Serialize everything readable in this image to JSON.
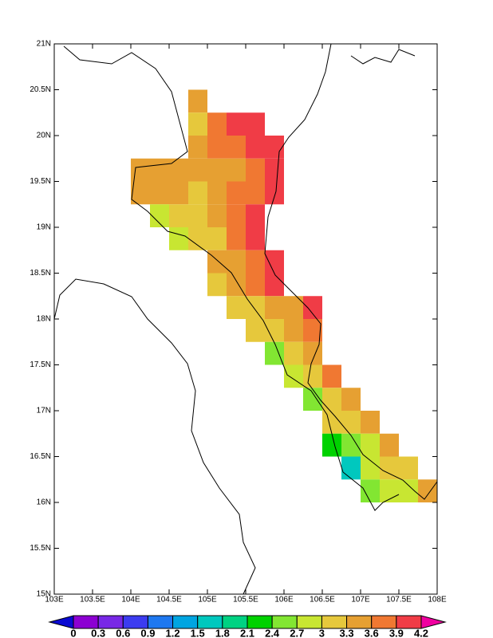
{
  "chart_data": {
    "type": "grid-map",
    "xlim": [
      103,
      108
    ],
    "ylim": [
      15,
      21
    ],
    "xticks": [
      {
        "value": 103,
        "label": "103E"
      },
      {
        "value": 103.5,
        "label": "103.5E"
      },
      {
        "value": 104,
        "label": "104E"
      },
      {
        "value": 104.5,
        "label": "104.5E"
      },
      {
        "value": 105,
        "label": "105E"
      },
      {
        "value": 105.5,
        "label": "105.5E"
      },
      {
        "value": 106,
        "label": "106E"
      },
      {
        "value": 106.5,
        "label": "106.5E"
      },
      {
        "value": 107,
        "label": "107E"
      },
      {
        "value": 107.5,
        "label": "107.5E"
      },
      {
        "value": 108,
        "label": "108E"
      }
    ],
    "yticks": [
      {
        "value": 15,
        "label": "15N"
      },
      {
        "value": 15.5,
        "label": "15.5N"
      },
      {
        "value": 16,
        "label": "16N"
      },
      {
        "value": 16.5,
        "label": "16.5N"
      },
      {
        "value": 17,
        "label": "17N"
      },
      {
        "value": 17.5,
        "label": "17.5N"
      },
      {
        "value": 18,
        "label": "18N"
      },
      {
        "value": 18.5,
        "label": "18.5N"
      },
      {
        "value": 19,
        "label": "19N"
      },
      {
        "value": 19.5,
        "label": "19.5N"
      },
      {
        "value": 20,
        "label": "20N"
      },
      {
        "value": 20.5,
        "label": "20.5N"
      },
      {
        "value": 21,
        "label": "21N"
      }
    ],
    "rows": [
      {
        "lat": 20.25,
        "lon": 104.75,
        "values": [
          3.45
        ]
      },
      {
        "lat": 20.0,
        "lon": 104.75,
        "values": [
          3.15,
          3.75,
          4.05,
          4.05
        ]
      },
      {
        "lat": 19.75,
        "lon": 104.75,
        "values": [
          3.45,
          3.75,
          3.75,
          4.05,
          4.05
        ]
      },
      {
        "lat": 19.5,
        "lon": 104.0,
        "values": [
          3.45,
          3.45,
          3.45,
          3.45,
          3.45,
          3.45,
          3.75,
          4.05
        ]
      },
      {
        "lat": 19.25,
        "lon": 104.0,
        "values": [
          3.45,
          3.45,
          3.45,
          3.15,
          3.45,
          3.75,
          3.75,
          4.05
        ]
      },
      {
        "lat": 19.0,
        "lon": 104.25,
        "values": [
          2.85,
          3.15,
          3.15,
          3.45,
          3.75,
          4.05
        ]
      },
      {
        "lat": 18.75,
        "lon": 104.5,
        "values": [
          2.85,
          3.15,
          3.15,
          3.75,
          4.05
        ]
      },
      {
        "lat": 18.5,
        "lon": 105.0,
        "values": [
          3.45,
          3.45,
          3.75,
          4.05
        ]
      },
      {
        "lat": 18.25,
        "lon": 105.0,
        "values": [
          3.15,
          3.45,
          3.75,
          4.05
        ]
      },
      {
        "lat": 18.0,
        "lon": 105.25,
        "values": [
          3.15,
          3.15,
          3.45,
          3.45,
          4.05
        ]
      },
      {
        "lat": 17.75,
        "lon": 105.5,
        "values": [
          3.15,
          3.15,
          3.45,
          3.75
        ]
      },
      {
        "lat": 17.5,
        "lon": 105.75,
        "values": [
          2.55,
          3.15,
          3.45
        ]
      },
      {
        "lat": 17.25,
        "lon": 106.0,
        "values": [
          2.85,
          3.15,
          3.75
        ]
      },
      {
        "lat": 17.0,
        "lon": 106.25,
        "values": [
          2.55,
          3.15,
          3.45
        ]
      },
      {
        "lat": 16.75,
        "lon": 106.5,
        "values": [
          3.15,
          3.15,
          3.45
        ]
      },
      {
        "lat": 16.5,
        "lon": 106.5,
        "values": [
          2.25,
          2.55,
          2.85,
          3.45
        ]
      },
      {
        "lat": 16.25,
        "lon": 106.75,
        "values": [
          1.65,
          2.85,
          3.15,
          3.15
        ]
      },
      {
        "lat": 16.0,
        "lon": 107.0,
        "values": [
          2.55,
          2.85,
          2.85,
          3.45
        ]
      }
    ],
    "colorbar": {
      "levels": [
        0,
        0.3,
        0.6,
        0.9,
        1.2,
        1.5,
        1.8,
        2.1,
        2.4,
        2.7,
        3,
        3.3,
        3.6,
        3.9,
        4.2
      ],
      "colors": [
        "#0a0ad2",
        "#8c00d2",
        "#7828e6",
        "#3c3cf0",
        "#1e78f0",
        "#00a5e1",
        "#00c8be",
        "#00d282",
        "#00d200",
        "#82e632",
        "#c8e632",
        "#e6c83c",
        "#e6a032",
        "#f07832",
        "#f03c46",
        "#f000a0"
      ]
    }
  }
}
